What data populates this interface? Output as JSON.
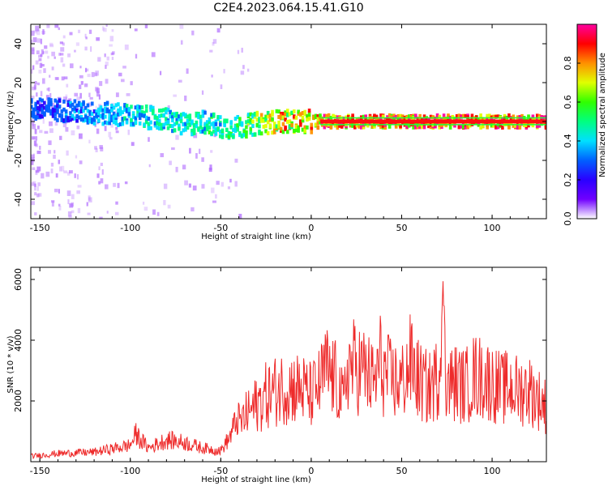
{
  "title": "C2E4.2023.064.15.41.G10",
  "colors": {
    "snr_line": "#ee2b2b",
    "colormap": [
      "#ffffff",
      "#7000ff",
      "#2a00ff",
      "#0060ff",
      "#00e0ff",
      "#00ff80",
      "#30ff00",
      "#e0ff00",
      "#ff9000",
      "#ff0000",
      "#ff00a0"
    ]
  },
  "chart_data": [
    {
      "type": "heatmap",
      "name": "spectrogram",
      "title": "C2E4.2023.064.15.41.G10",
      "xlabel": "Height of straight line (km)",
      "ylabel": "Frequency (Hz)",
      "xlim": [
        -155,
        130
      ],
      "ylim": [
        -50,
        50
      ],
      "xticks": [
        -150,
        -100,
        -50,
        0,
        50,
        100
      ],
      "yticks": [
        -40,
        -20,
        0,
        20,
        40
      ],
      "colorbar": {
        "label": "Normalized spectral amplitude",
        "range": [
          0,
          1
        ],
        "ticks": [
          "0.0",
          "0.2",
          "0.4",
          "0.6",
          "0.8"
        ]
      },
      "description_points": {
        "center_frequency_hz": [
          [
            -150,
            6
          ],
          [
            -140,
            6
          ],
          [
            -130,
            5
          ],
          [
            -120,
            4
          ],
          [
            -110,
            4
          ],
          [
            -100,
            3
          ],
          [
            -90,
            2
          ],
          [
            -80,
            1
          ],
          [
            -70,
            -2
          ],
          [
            -60,
            0
          ],
          [
            -50,
            -3
          ],
          [
            -40,
            -3
          ],
          [
            -30,
            -1
          ],
          [
            -20,
            0
          ],
          [
            -10,
            0
          ],
          [
            0,
            0
          ],
          [
            50,
            0
          ],
          [
            100,
            0
          ],
          [
            130,
            0
          ]
        ],
        "max_amplitude": [
          [
            -150,
            0.28
          ],
          [
            -120,
            0.35
          ],
          [
            -100,
            0.45
          ],
          [
            -80,
            0.5
          ],
          [
            -60,
            0.5
          ],
          [
            -40,
            0.55
          ],
          [
            -20,
            0.85
          ],
          [
            0,
            0.9
          ],
          [
            10,
            1.0
          ],
          [
            130,
            1.0
          ]
        ]
      }
    },
    {
      "type": "line",
      "name": "snr",
      "xlabel": "Height of straight line (km)",
      "ylabel": "SNR (10 * v/v)",
      "xlim": [
        -155,
        130
      ],
      "ylim": [
        0,
        6400
      ],
      "xticks": [
        -150,
        -100,
        -50,
        0,
        50,
        100
      ],
      "yticks": [
        2000,
        4000,
        6000
      ],
      "envelope": {
        "x": [
          -155,
          -140,
          -120,
          -100,
          -97,
          -90,
          -80,
          -70,
          -60,
          -50,
          -45,
          -40,
          -35,
          -30,
          -25,
          -20,
          -15,
          -10,
          -5,
          0,
          5,
          8,
          10,
          12,
          15,
          18,
          20,
          25,
          30,
          35,
          38,
          40,
          45,
          50,
          55,
          60,
          65,
          70,
          73,
          75,
          80,
          85,
          90,
          95,
          100,
          105,
          110,
          115,
          120,
          125,
          130
        ],
        "y": [
          200,
          300,
          350,
          600,
          1000,
          500,
          800,
          700,
          500,
          400,
          900,
          1700,
          2200,
          2600,
          3000,
          3200,
          3400,
          3400,
          3300,
          3000,
          3500,
          4200,
          4000,
          3800,
          3500,
          2500,
          4400,
          4300,
          4100,
          3500,
          4600,
          4000,
          3700,
          3600,
          4500,
          3600,
          3300,
          3800,
          6200,
          3500,
          3600,
          3400,
          3900,
          3800,
          3600,
          3300,
          3400,
          3200,
          3300,
          2900,
          2500
        ]
      }
    }
  ]
}
